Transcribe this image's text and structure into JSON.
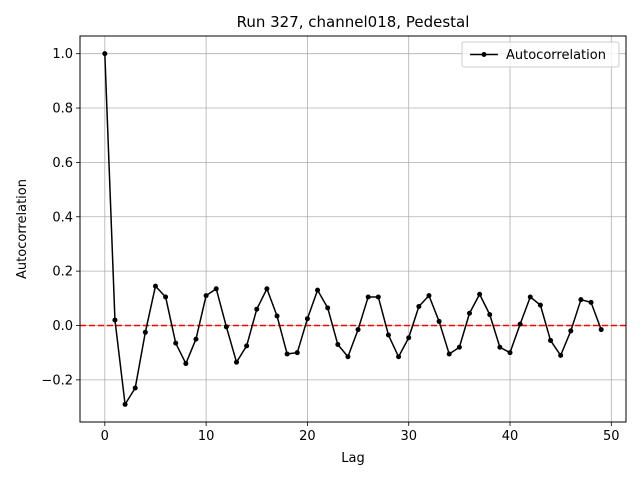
{
  "chart_data": {
    "type": "line",
    "title": "Run 327, channel018, Pedestal",
    "xlabel": "Lag",
    "ylabel": "Autocorrelation",
    "xlim": [
      -2.45,
      51.45
    ],
    "ylim": [
      -0.355,
      1.065
    ],
    "xticks": [
      0,
      10,
      20,
      30,
      40,
      50
    ],
    "xtick_labels": [
      "0",
      "10",
      "20",
      "30",
      "40",
      "50"
    ],
    "yticks": [
      -0.2,
      0.0,
      0.2,
      0.4,
      0.6,
      0.8,
      1.0
    ],
    "ytick_labels": [
      "−0.2",
      "0.0",
      "0.2",
      "0.4",
      "0.6",
      "0.8",
      "1.0"
    ],
    "grid": true,
    "legend_position": "top-right",
    "series": [
      {
        "name": "Autocorrelation",
        "color": "#000000",
        "marker": "circle",
        "x": [
          0,
          1,
          2,
          3,
          4,
          5,
          6,
          7,
          8,
          9,
          10,
          11,
          12,
          13,
          14,
          15,
          16,
          17,
          18,
          19,
          20,
          21,
          22,
          23,
          24,
          25,
          26,
          27,
          28,
          29,
          30,
          31,
          32,
          33,
          34,
          35,
          36,
          37,
          38,
          39,
          40,
          41,
          42,
          43,
          44,
          45,
          46,
          47,
          48,
          49
        ],
        "values": [
          1.0,
          0.02,
          -0.29,
          -0.23,
          -0.025,
          0.145,
          0.105,
          -0.065,
          -0.14,
          -0.05,
          0.11,
          0.135,
          -0.005,
          -0.135,
          -0.075,
          0.06,
          0.135,
          0.035,
          -0.105,
          -0.1,
          0.025,
          0.13,
          0.065,
          -0.07,
          -0.115,
          -0.015,
          0.105,
          0.105,
          -0.035,
          -0.115,
          -0.045,
          0.07,
          0.11,
          0.015,
          -0.105,
          -0.08,
          0.045,
          0.115,
          0.04,
          -0.08,
          -0.1,
          0.005,
          0.105,
          0.075,
          -0.055,
          -0.11,
          -0.02,
          0.095,
          0.085,
          -0.015
        ]
      }
    ],
    "reference_line": {
      "y": 0,
      "color": "#ff0000",
      "style": "dashed"
    }
  }
}
